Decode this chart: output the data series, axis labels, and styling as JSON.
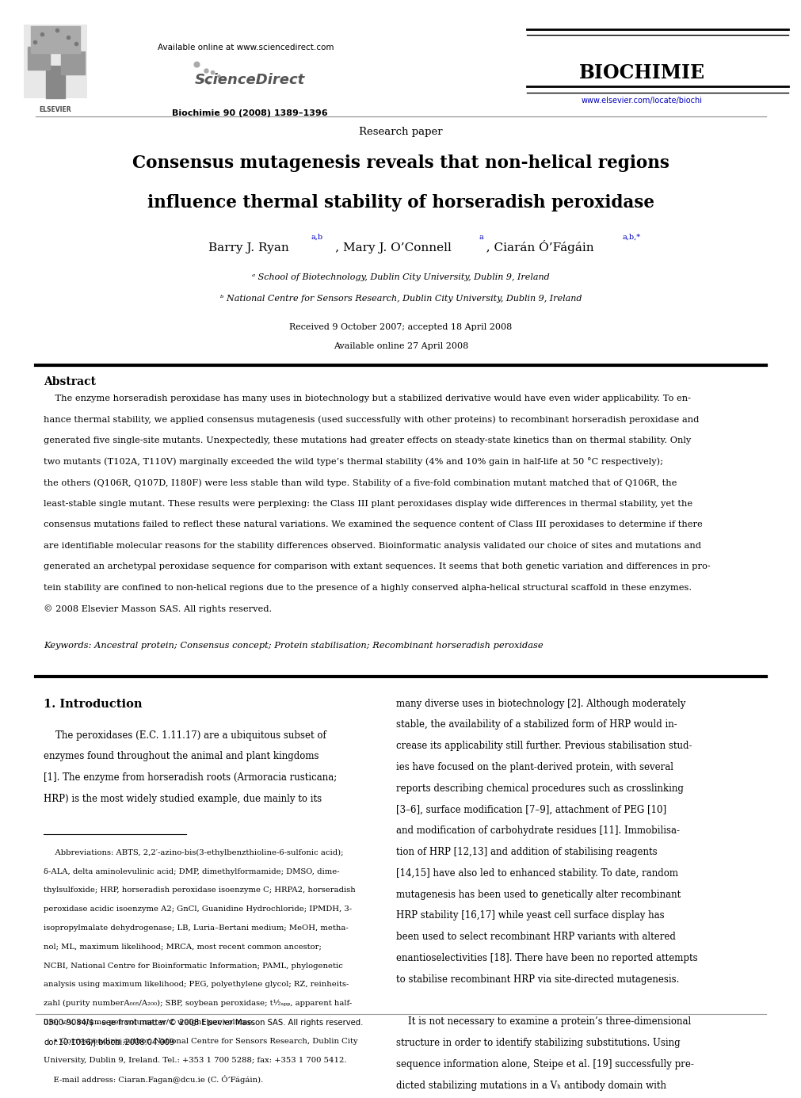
{
  "bg_color": "#ffffff",
  "page_width": 9.92,
  "page_height": 13.23,
  "header": {
    "available_online": "Available online at www.sciencedirect.com",
    "sciencedirect": "ScienceDirect",
    "journal_name": "BIOCHIMIE",
    "journal_info": "Biochimie 90 (2008) 1389–1396",
    "journal_url": "www.elsevier.com/locate/biochi",
    "elsevier_label": "ELSEVIER"
  },
  "article_type": "Research paper",
  "title_line1": "Consensus mutagenesis reveals that non-helical regions",
  "title_line2": "influence thermal stability of horseradish peroxidase",
  "author_main": "Barry J. Ryan",
  "author_sup1": "a,b",
  "author2_main": ", Mary J. O’Connell",
  "author2_sup": "a",
  "author3_main": ", Ciarán Ó’Fágáin",
  "author3_sup": "a,b,*",
  "affil_a": "ᵃ School of Biotechnology, Dublin City University, Dublin 9, Ireland",
  "affil_b": "ᵇ National Centre for Sensors Research, Dublin City University, Dublin 9, Ireland",
  "received": "Received 9 October 2007; accepted 18 April 2008",
  "available": "Available online 27 April 2008",
  "abstract_heading": "Abstract",
  "abstract_text": "    The enzyme horseradish peroxidase has many uses in biotechnology but a stabilized derivative would have even wider applicability. To enhance thermal stability, we applied consensus mutagenesis (used successfully with other proteins) to recombinant horseradish peroxidase and generated five single-site mutants. Unexpectedly, these mutations had greater effects on steady-state kinetics than on thermal stability. Only two mutants (T102A, T110V) marginally exceeded the wild type’s thermal stability (4% and 10% gain in half-life at 50 °C respectively); the others (Q106R, Q107D, I180F) were less stable than wild type. Stability of a five-fold combination mutant matched that of Q106R, the least-stable single mutant. These results were perplexing: the Class III plant peroxidases display wide differences in thermal stability, yet the consensus mutations failed to reflect these natural variations. We examined the sequence content of Class III peroxidases to determine if there are identifiable molecular reasons for the stability differences observed. Bioinformatic analysis validated our choice of sites and mutations and generated an archetypal peroxidase sequence for comparison with extant sequences. It seems that both genetic variation and differences in protein stability are confined to non-helical regions due to the presence of a highly conserved alpha-helical structural scaffold in these enzymes.\n© 2008 Elsevier Masson SAS. All rights reserved.",
  "keywords": "Keywords: Ancestral protein; Consensus concept; Protein stabilisation; Recombinant horseradish peroxidase",
  "intro_heading": "1. Introduction",
  "col1_para": "    The peroxidases (E.C. 1.11.17) are a ubiquitous subset of enzymes found throughout the animal and plant kingdoms [1]. The enzyme from horseradish roots (Armoracia rusticana; HRP) is the most widely studied example, due mainly to its",
  "col2_para": "many diverse uses in biotechnology [2]. Although moderately stable, the availability of a stabilized form of HRP would increase its applicability still further. Previous stabilisation studies have focused on the plant-derived protein, with several reports describing chemical procedures such as crosslinking [3–6], surface modification [7–9], attachment of PEG [10] and modification of carbohydrate residues [11]. Immobilisation of HRP [12,13] and addition of stabilising reagents [14,15] have also led to enhanced stability. To date, random mutagenesis has been used to genetically alter recombinant HRP stability [16,17] while yeast cell surface display has been used to select recombinant HRP variants with altered enantioselectivities [18]. There have been no reported attempts to stabilise recombinant HRP via site-directed mutagenesis.\n    It is not necessary to examine a protein’s three-dimensional structure in order to identify stabilizing substitutions. Using sequence information alone, Steipe et al. [19] successfully predicted stabilizing mutations in a VH antibody domain with",
  "footnote_text": "    Abbreviations: ABTS, 2,2′-azino-bis(3-ethylbenzthioline-6-sulfonic acid); δ-ALA, delta aminolevulinic acid; DMP, dimethylformamide; DMSO, dimethylsulfoxide; HRP, horseradish peroxidase isoenzyme C; HRPA2, horseradish peroxidase acidic isoenzyme A2; GnCl, Guanidine Hydrochloride; IPMDH, 3-isopropylmalate dehydrogenase; LB, Luria–Bertani medium; MeOH, methanol; ML, maximum likelihood; MRCA, most recent common ancestor; NCBI, National Centre for Bioinformatic Information; PAML, phylogenetic analysis using maximum likelihood; PEG, polyethylene glycol; RZ, reinheitszahl (purity numberA405/A280); SBP, soybean peroxidase; t½app, apparent half-life; v/v, volume per volume; w/v, weight per volume.\n    * Corresponding author. National Centre for Sensors Research, Dublin City University, Dublin 9, Ireland. Tel.: +353 1 700 5288; fax: +353 1 700 5412.\n    E-mail address: Ciaran.Fagan@dcu.ie (C. Ó’Fágáin).",
  "copyright_line1": "0300-9084/$ - see front matter © 2008 Elsevier Masson SAS. All rights reserved.",
  "copyright_line2": "doi:10.1016/j.biochi.2008.04.009"
}
